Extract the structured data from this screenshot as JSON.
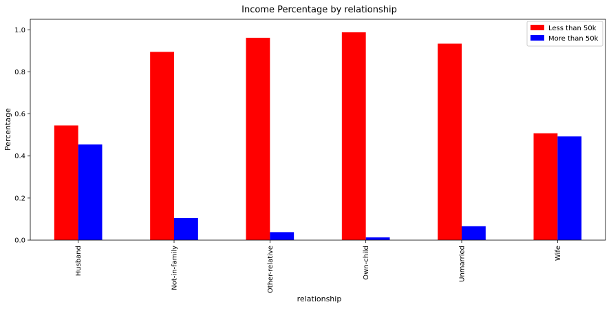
{
  "chart_data": {
    "type": "bar",
    "title": "Income Percentage by relationship",
    "xlabel": "relationship",
    "ylabel": "Percentage",
    "categories": [
      "Husband",
      "Not-in-family",
      "Other-relative",
      "Own-child",
      "Unmarried",
      "Wife"
    ],
    "series": [
      {
        "name": "Less than 50k",
        "color": "#ff0000",
        "values": [
          0.545,
          0.895,
          0.962,
          0.988,
          0.934,
          0.508
        ]
      },
      {
        "name": "More than 50k",
        "color": "#0000ff",
        "values": [
          0.455,
          0.105,
          0.038,
          0.013,
          0.066,
          0.493
        ]
      }
    ],
    "ylim": [
      0,
      1.05
    ],
    "yticks": [
      "0.0",
      "0.2",
      "0.4",
      "0.6",
      "0.8",
      "1.0"
    ],
    "ytick_values": [
      0,
      0.2,
      0.4,
      0.6,
      0.8,
      1.0
    ],
    "legend_position": "top-right",
    "grid": false
  }
}
